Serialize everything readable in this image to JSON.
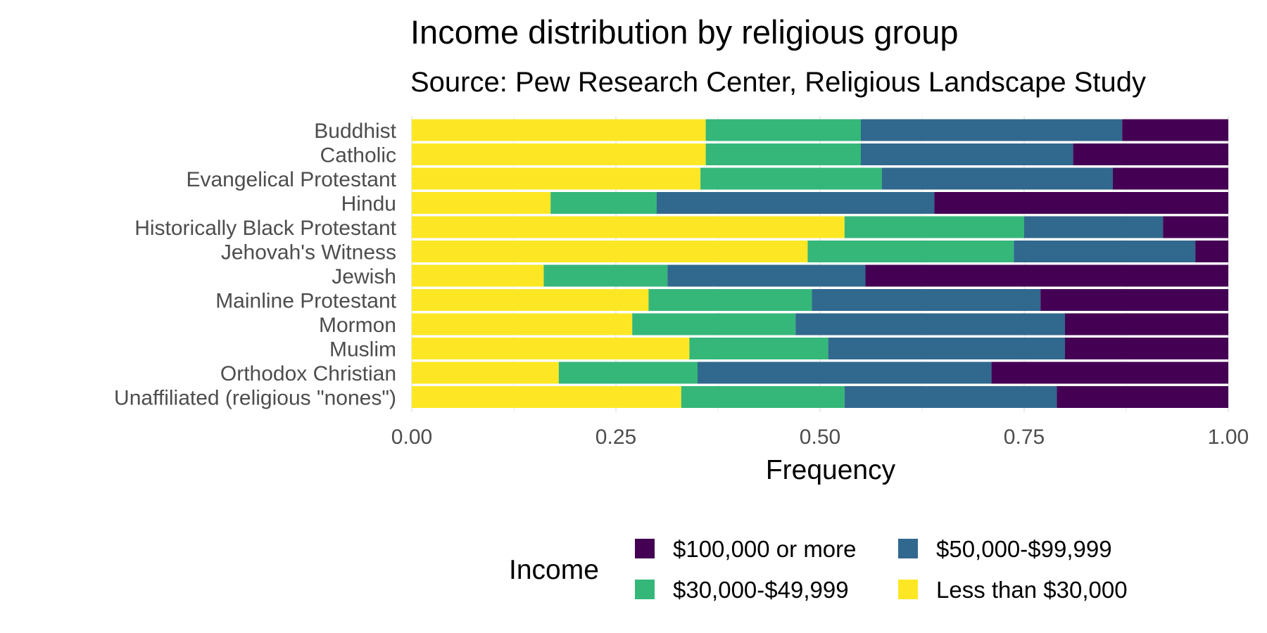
{
  "chart_data": {
    "type": "bar",
    "orientation": "horizontal",
    "stacked": true,
    "title": "Income distribution by religious group",
    "subtitle": "Source: Pew Research Center, Religious Landscape Study",
    "xlabel": "Frequency",
    "ylabel": "",
    "xlim": [
      0,
      1
    ],
    "x_ticks": [
      0,
      0.25,
      0.5,
      0.75,
      1
    ],
    "x_tick_labels": [
      "0.00",
      "0.25",
      "0.50",
      "0.75",
      "1.00"
    ],
    "grid": true,
    "legend": {
      "title": "Income",
      "position": "bottom",
      "items": [
        {
          "label": "$100,000 or more",
          "color": "#440154"
        },
        {
          "label": "$50,000-$99,999",
          "color": "#31688e"
        },
        {
          "label": "$30,000-$49,999",
          "color": "#35b779"
        },
        {
          "label": "Less than $30,000",
          "color": "#fde725"
        }
      ]
    },
    "categories": [
      "Buddhist",
      "Catholic",
      "Evangelical Protestant",
      "Hindu",
      "Historically Black Protestant",
      "Jehovah's Witness",
      "Jewish",
      "Mainline Protestant",
      "Mormon",
      "Muslim",
      "Orthodox Christian",
      "Unaffiliated (religious \"nones\")"
    ],
    "series": [
      {
        "name": "Less than $30,000",
        "color": "#fde725",
        "values": [
          0.36,
          0.36,
          0.35,
          0.17,
          0.53,
          0.48,
          0.16,
          0.29,
          0.27,
          0.34,
          0.18,
          0.33
        ]
      },
      {
        "name": "$30,000-$49,999",
        "color": "#35b779",
        "values": [
          0.19,
          0.19,
          0.22,
          0.13,
          0.22,
          0.25,
          0.15,
          0.2,
          0.2,
          0.17,
          0.17,
          0.2
        ]
      },
      {
        "name": "$50,000-$99,999",
        "color": "#31688e",
        "values": [
          0.32,
          0.26,
          0.28,
          0.34,
          0.17,
          0.22,
          0.24,
          0.28,
          0.33,
          0.29,
          0.36,
          0.26
        ]
      },
      {
        "name": "$100,000 or more",
        "color": "#440154",
        "values": [
          0.13,
          0.19,
          0.14,
          0.36,
          0.08,
          0.04,
          0.44,
          0.23,
          0.2,
          0.2,
          0.29,
          0.21
        ]
      }
    ]
  }
}
